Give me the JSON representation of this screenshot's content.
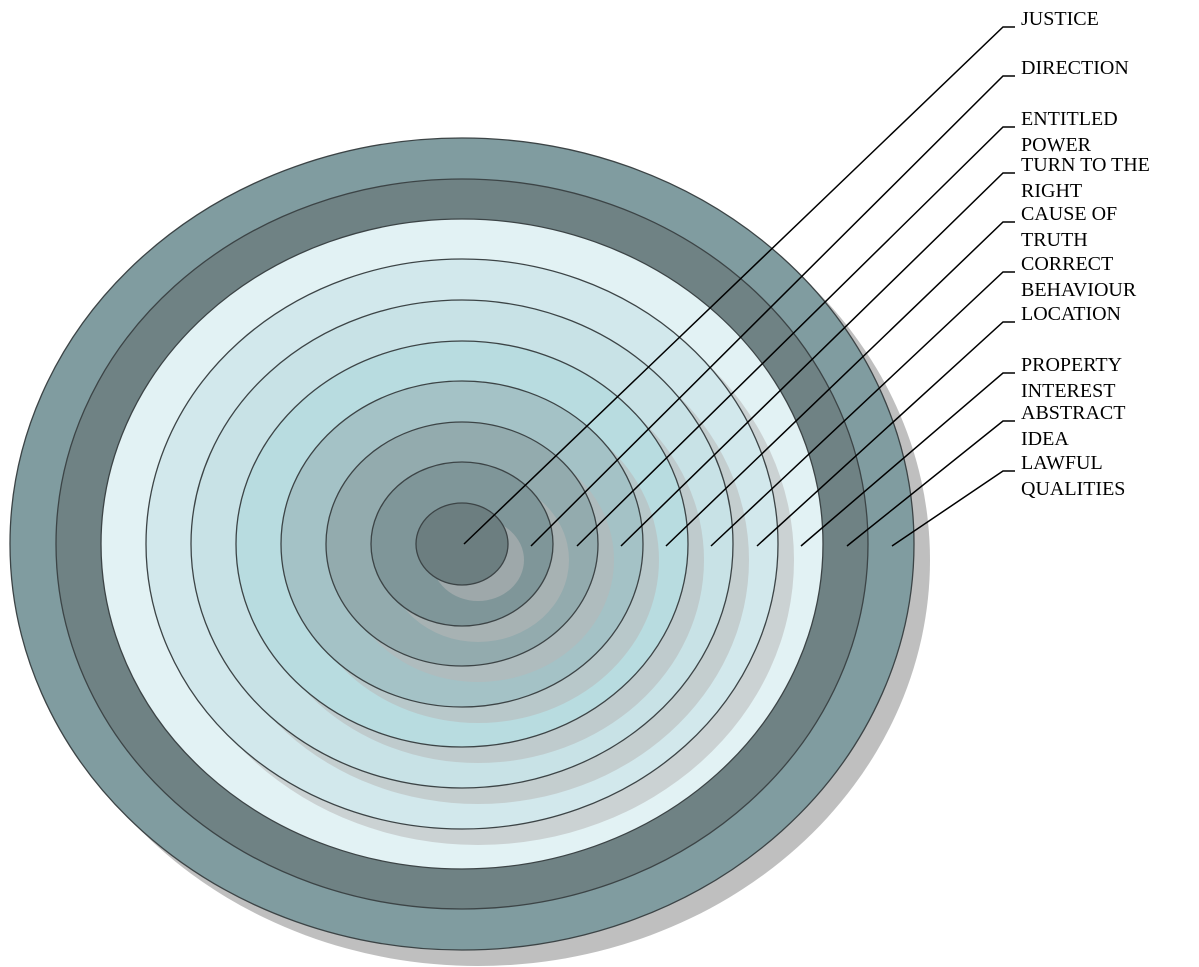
{
  "diagram": {
    "labels": [
      [
        "JUSTICE"
      ],
      [
        "DIRECTION"
      ],
      [
        "ENTITLED",
        "POWER"
      ],
      [
        "TURN TO THE",
        "RIGHT"
      ],
      [
        "CAUSE OF",
        "TRUTH"
      ],
      [
        "CORRECT",
        "BEHAVIOUR"
      ],
      [
        "LOCATION"
      ],
      [
        "PROPERTY",
        "INTEREST"
      ],
      [
        "ABSTRACT",
        "IDEA"
      ],
      [
        "LAWFUL",
        "QUALITIES"
      ]
    ],
    "colors": {
      "outer_ring": "#809ca0",
      "second_ring": "#6f8284",
      "light_ring": "#e2f2f4",
      "mid_light_ring": "#d2e8ec",
      "pale_ring": "#c8e2e6",
      "teal_ring": "#b8dce0",
      "gray_teal_ring": "#a4c2c6",
      "steel_ring": "#93abae",
      "slate_ring": "#7f9699",
      "core": "#6c7e80",
      "shadow": "#b8b8b8",
      "stroke": "#3c4446",
      "leader": "#000000"
    }
  }
}
